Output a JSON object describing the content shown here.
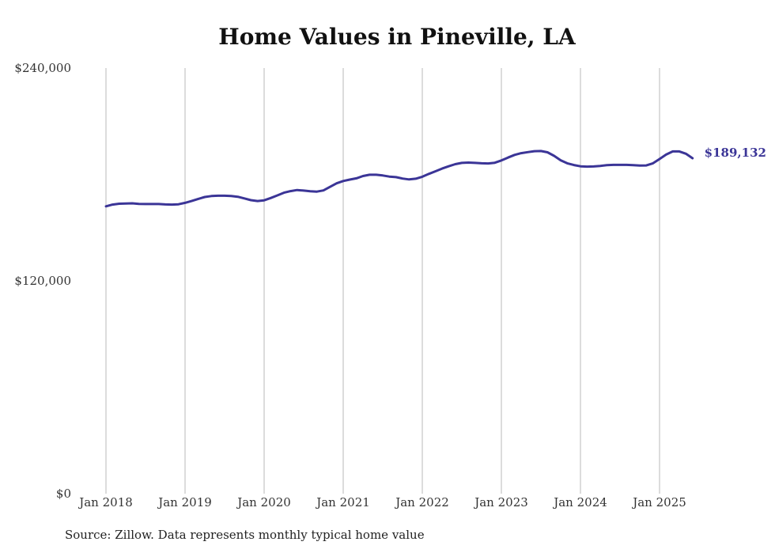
{
  "chart_data": {
    "type": "line",
    "title": "Home Values in Pineville, LA",
    "xlabel": "",
    "ylabel": "",
    "ylim": [
      0,
      240000
    ],
    "y_ticks": [
      0,
      120000,
      240000
    ],
    "y_tick_labels": [
      "$0",
      "$120,000",
      "$240,000"
    ],
    "x_tick_labels": [
      "Jan 2018",
      "Jan 2019",
      "Jan 2020",
      "Jan 2021",
      "Jan 2022",
      "Jan 2023",
      "Jan 2024",
      "Jan 2025"
    ],
    "x_range": [
      "2018-01",
      "2025-06"
    ],
    "grid": "vertical",
    "line_color": "#3b3597",
    "end_label": "$189,132",
    "source": "Source: Zillow. Data represents monthly typical home value",
    "series": [
      {
        "x": [
          "2018-01",
          "2018-02",
          "2018-03",
          "2018-04",
          "2018-05",
          "2018-06",
          "2018-07",
          "2018-08",
          "2018-09",
          "2018-10",
          "2018-11",
          "2018-12",
          "2019-01",
          "2019-02",
          "2019-03",
          "2019-04",
          "2019-05",
          "2019-06",
          "2019-07",
          "2019-08",
          "2019-09",
          "2019-10",
          "2019-11",
          "2019-12",
          "2020-01",
          "2020-02",
          "2020-03",
          "2020-04",
          "2020-05",
          "2020-06",
          "2020-07",
          "2020-08",
          "2020-09",
          "2020-10",
          "2020-11",
          "2020-12",
          "2021-01",
          "2021-02",
          "2021-03",
          "2021-04",
          "2021-05",
          "2021-06",
          "2021-07",
          "2021-08",
          "2021-09",
          "2021-10",
          "2021-11",
          "2021-12",
          "2022-01",
          "2022-02",
          "2022-03",
          "2022-04",
          "2022-05",
          "2022-06",
          "2022-07",
          "2022-08",
          "2022-09",
          "2022-10",
          "2022-11",
          "2022-12",
          "2023-01",
          "2023-02",
          "2023-03",
          "2023-04",
          "2023-05",
          "2023-06",
          "2023-07",
          "2023-08",
          "2023-09",
          "2023-10",
          "2023-11",
          "2023-12",
          "2024-01",
          "2024-02",
          "2024-03",
          "2024-04",
          "2024-05",
          "2024-06",
          "2024-07",
          "2024-08",
          "2024-09",
          "2024-10",
          "2024-11",
          "2024-12",
          "2025-01",
          "2025-02",
          "2025-03",
          "2025-04",
          "2025-05",
          "2025-06"
        ],
        "values": [
          162000,
          163000,
          163500,
          163600,
          163700,
          163400,
          163300,
          163300,
          163300,
          163100,
          163000,
          163200,
          164000,
          165000,
          166200,
          167300,
          167800,
          168000,
          168000,
          167800,
          167400,
          166500,
          165500,
          165000,
          165400,
          166700,
          168200,
          169700,
          170600,
          171200,
          170900,
          170500,
          170300,
          171000,
          173000,
          175000,
          176300,
          177100,
          177800,
          179100,
          179800,
          179800,
          179400,
          178800,
          178500,
          177700,
          177200,
          177600,
          178700,
          180300,
          181800,
          183300,
          184600,
          185800,
          186500,
          186700,
          186500,
          186300,
          186200,
          186600,
          187900,
          189500,
          191000,
          192000,
          192600,
          193100,
          193200,
          192500,
          190500,
          188000,
          186300,
          185300,
          184600,
          184400,
          184500,
          184800,
          185200,
          185400,
          185400,
          185400,
          185200,
          185000,
          185100,
          186300,
          188700,
          191200,
          193000,
          193000,
          191700,
          189132
        ]
      }
    ]
  }
}
